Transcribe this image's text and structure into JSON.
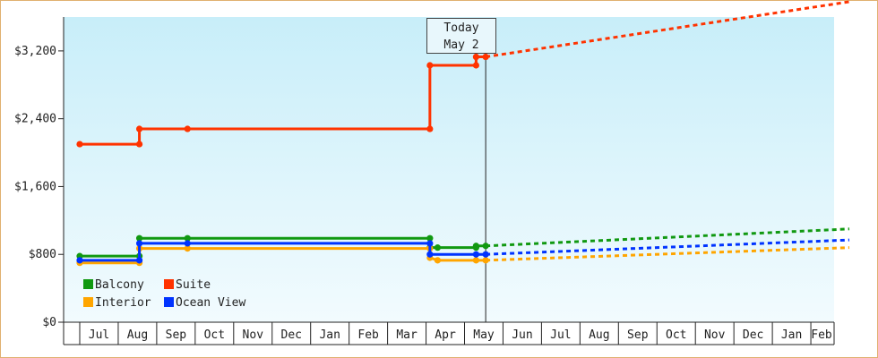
{
  "chart_data": {
    "type": "line",
    "title": "",
    "xlabel": "",
    "ylabel": "",
    "ylim": [
      0,
      3600
    ],
    "y_ticks": [
      "$0",
      "$800",
      "$1,600",
      "$2,400",
      "$3,200"
    ],
    "x_ticks": [
      "Jul",
      "Aug",
      "Sep",
      "Oct",
      "Nov",
      "Dec",
      "Jan",
      "Feb",
      "Mar",
      "Apr",
      "May",
      "Jun",
      "Jul",
      "Aug",
      "Sep",
      "Oct",
      "Nov",
      "Dec",
      "Jan",
      "Feb"
    ],
    "today_marker": {
      "line1": "Today",
      "line2": "May 2"
    },
    "legend_position": "bottom-left",
    "series": [
      {
        "name": "Balcony",
        "color": "#119911",
        "history": [
          [
            0,
            780
          ],
          [
            1.55,
            780
          ],
          [
            1.55,
            990
          ],
          [
            2.8,
            990
          ],
          [
            9.1,
            990
          ],
          [
            9.1,
            880
          ],
          [
            9.3,
            880
          ],
          [
            10.3,
            880
          ],
          [
            10.3,
            900
          ],
          [
            10.55,
            900
          ]
        ],
        "markers": [
          [
            0,
            780
          ],
          [
            1.55,
            780
          ],
          [
            1.55,
            990
          ],
          [
            2.8,
            990
          ],
          [
            9.1,
            990
          ],
          [
            9.1,
            880
          ],
          [
            9.3,
            880
          ],
          [
            10.3,
            880
          ],
          [
            10.3,
            900
          ],
          [
            10.55,
            900
          ]
        ],
        "forecast": [
          [
            10.55,
            900
          ],
          [
            20,
            1100
          ]
        ]
      },
      {
        "name": "Suite",
        "color": "#ff3300",
        "history": [
          [
            0,
            2100
          ],
          [
            1.55,
            2100
          ],
          [
            1.55,
            2280
          ],
          [
            2.8,
            2280
          ],
          [
            9.1,
            2280
          ],
          [
            9.1,
            3030
          ],
          [
            10.3,
            3030
          ],
          [
            10.3,
            3130
          ],
          [
            10.55,
            3130
          ]
        ],
        "markers": [
          [
            0,
            2100
          ],
          [
            1.55,
            2100
          ],
          [
            1.55,
            2280
          ],
          [
            2.8,
            2280
          ],
          [
            9.1,
            2280
          ],
          [
            9.1,
            3030
          ],
          [
            10.3,
            3030
          ],
          [
            10.3,
            3130
          ],
          [
            10.55,
            3130
          ]
        ],
        "forecast": [
          [
            10.55,
            3130
          ],
          [
            20,
            3780
          ]
        ]
      },
      {
        "name": "Interior",
        "color": "#ffa500",
        "history": [
          [
            0,
            700
          ],
          [
            1.55,
            700
          ],
          [
            1.55,
            870
          ],
          [
            2.8,
            870
          ],
          [
            9.1,
            870
          ],
          [
            9.1,
            760
          ],
          [
            9.3,
            730
          ],
          [
            10.3,
            730
          ],
          [
            10.55,
            730
          ]
        ],
        "markers": [
          [
            0,
            700
          ],
          [
            1.55,
            700
          ],
          [
            1.55,
            870
          ],
          [
            2.8,
            870
          ],
          [
            9.1,
            870
          ],
          [
            9.1,
            760
          ],
          [
            9.3,
            730
          ],
          [
            10.3,
            730
          ],
          [
            10.55,
            730
          ]
        ],
        "forecast": [
          [
            10.55,
            730
          ],
          [
            20,
            880
          ]
        ]
      },
      {
        "name": "Ocean View",
        "color": "#0033ff",
        "history": [
          [
            0,
            730
          ],
          [
            1.55,
            730
          ],
          [
            1.55,
            930
          ],
          [
            2.8,
            930
          ],
          [
            9.1,
            930
          ],
          [
            9.1,
            800
          ],
          [
            10.3,
            800
          ],
          [
            10.55,
            800
          ]
        ],
        "markers": [
          [
            0,
            730
          ],
          [
            1.55,
            730
          ],
          [
            1.55,
            930
          ],
          [
            2.8,
            930
          ],
          [
            9.1,
            930
          ],
          [
            9.1,
            800
          ],
          [
            10.3,
            800
          ],
          [
            10.55,
            800
          ]
        ],
        "forecast": [
          [
            10.55,
            800
          ],
          [
            20,
            970
          ]
        ]
      }
    ]
  },
  "legend": [
    {
      "name": "Balcony",
      "color": "#119911"
    },
    {
      "name": "Suite",
      "color": "#ff3300"
    },
    {
      "name": "Interior",
      "color": "#ffa500"
    },
    {
      "name": "Ocean View",
      "color": "#0033ff"
    }
  ]
}
